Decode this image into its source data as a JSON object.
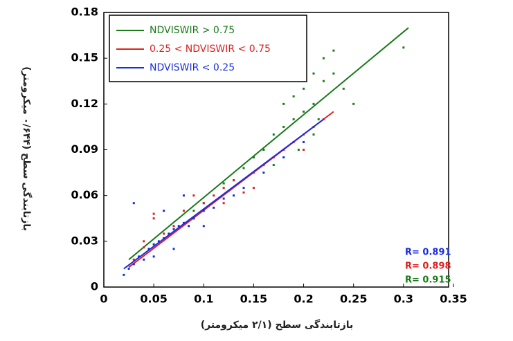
{
  "chart_data": {
    "type": "scatter",
    "x_label": "بازتابندگی سطح (۲/۱ میکرومتر)",
    "y_label": "بازتابندگی سطح (۰/۶۴۴ میکرومتر)",
    "xlim": [
      0,
      0.35
    ],
    "xticks": [
      0,
      0.05,
      0.1,
      0.15,
      0.2,
      0.25,
      0.3,
      0.35
    ],
    "ylim": [
      0,
      0.18
    ],
    "yticks": [
      0,
      0.03,
      0.06,
      0.09,
      0.12,
      0.15,
      0.18
    ],
    "legend": "upper left",
    "series": [
      {
        "name": "NDVISWIR > 0.75",
        "color": "#1a7a1a",
        "x": [
          0.12,
          0.13,
          0.14,
          0.15,
          0.16,
          0.17,
          0.18,
          0.18,
          0.19,
          0.19,
          0.2,
          0.2,
          0.21,
          0.21,
          0.22,
          0.22,
          0.23,
          0.23,
          0.24,
          0.21,
          0.17,
          0.2,
          0.25,
          0.3,
          0.1,
          0.09,
          0.195,
          0.215
        ],
        "values": [
          0.068,
          0.07,
          0.078,
          0.085,
          0.09,
          0.1,
          0.105,
          0.12,
          0.11,
          0.125,
          0.13,
          0.115,
          0.14,
          0.12,
          0.15,
          0.135,
          0.155,
          0.14,
          0.13,
          0.1,
          0.08,
          0.145,
          0.12,
          0.157,
          0.055,
          0.05,
          0.09,
          0.11
        ],
        "fit_x": [
          0.025,
          0.305
        ],
        "fit_y": [
          0.018,
          0.17
        ],
        "annotation": "R= 0.915"
      },
      {
        "name": "0.25 < NDVISWIR < 0.75",
        "color": "#e02020",
        "x": [
          0.03,
          0.04,
          0.05,
          0.06,
          0.07,
          0.08,
          0.09,
          0.1,
          0.11,
          0.12,
          0.13,
          0.14,
          0.15,
          0.16,
          0.17,
          0.18,
          0.19,
          0.2,
          0.21,
          0.22,
          0.05,
          0.09,
          0.12,
          0.15,
          0.2,
          0.04
        ],
        "values": [
          0.018,
          0.03,
          0.048,
          0.035,
          0.04,
          0.05,
          0.045,
          0.055,
          0.06,
          0.065,
          0.07,
          0.062,
          0.075,
          0.08,
          0.085,
          0.09,
          0.095,
          0.1,
          0.105,
          0.11,
          0.045,
          0.06,
          0.055,
          0.065,
          0.09,
          0.026
        ],
        "fit_x": [
          0.025,
          0.23
        ],
        "fit_y": [
          0.013,
          0.115
        ],
        "annotation": "R= 0.898"
      },
      {
        "name": "NDVISWIR < 0.25",
        "color": "#1a2ee0",
        "x": [
          0.02,
          0.025,
          0.03,
          0.035,
          0.04,
          0.045,
          0.05,
          0.055,
          0.06,
          0.065,
          0.07,
          0.075,
          0.08,
          0.085,
          0.09,
          0.1,
          0.11,
          0.12,
          0.13,
          0.14,
          0.16,
          0.18,
          0.2,
          0.03,
          0.06,
          0.08,
          0.05,
          0.07,
          0.1
        ],
        "values": [
          0.008,
          0.012,
          0.015,
          0.02,
          0.018,
          0.025,
          0.028,
          0.03,
          0.032,
          0.035,
          0.038,
          0.04,
          0.042,
          0.04,
          0.045,
          0.05,
          0.052,
          0.058,
          0.06,
          0.065,
          0.075,
          0.085,
          0.095,
          0.055,
          0.05,
          0.06,
          0.02,
          0.025,
          0.04
        ],
        "fit_x": [
          0.02,
          0.22
        ],
        "fit_y": [
          0.012,
          0.11
        ],
        "annotation": "R= 0.891"
      }
    ]
  }
}
